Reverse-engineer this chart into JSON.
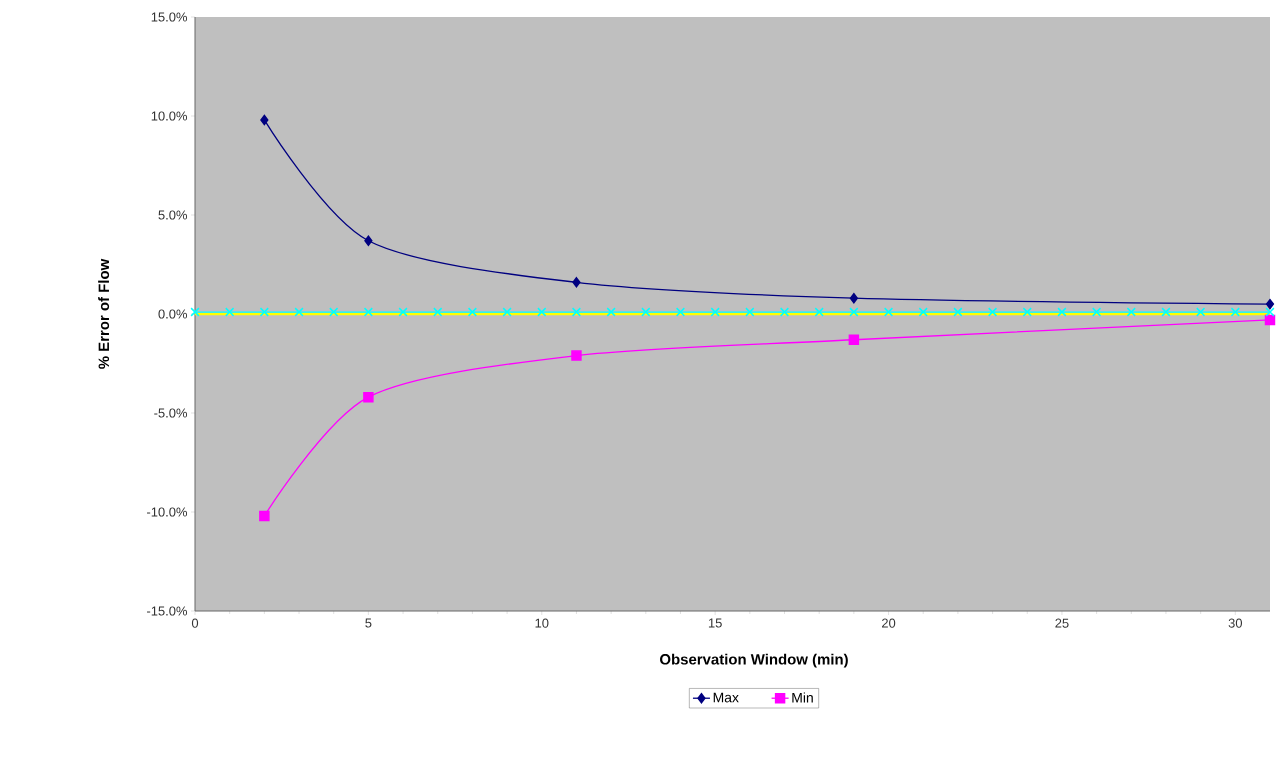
{
  "chart_data": {
    "type": "line",
    "xlabel": "Observation Window (min)",
    "ylabel": "% Error of Flow",
    "xlim": [
      0,
      31
    ],
    "xticks": [
      0,
      5,
      10,
      15,
      20,
      25,
      30
    ],
    "ylim": [
      -15,
      15
    ],
    "yticks": [
      {
        "value": -15,
        "label": "-15.0%"
      },
      {
        "value": -10,
        "label": "-10.0%"
      },
      {
        "value": -5,
        "label": "-5.0%"
      },
      {
        "value": 0,
        "label": "0.0%"
      },
      {
        "value": 5,
        "label": "5.0%"
      },
      {
        "value": 10,
        "label": "10.0%"
      },
      {
        "value": 15,
        "label": "15.0%"
      }
    ],
    "legend": "bottom",
    "grid": false,
    "series": [
      {
        "name": "Max",
        "color": "#000080",
        "marker": "diamond",
        "x": [
          2,
          5,
          11,
          19,
          31
        ],
        "values": [
          9.8,
          3.7,
          1.6,
          0.8,
          0.5
        ]
      },
      {
        "name": "Min",
        "color": "#ff00ff",
        "marker": "square",
        "x": [
          2,
          5,
          11,
          19,
          31
        ],
        "values": [
          -10.2,
          -4.2,
          -2.1,
          -1.3,
          -0.3
        ]
      },
      {
        "color": "#ffff00",
        "marker": "none",
        "x": [
          0,
          31
        ],
        "values": [
          0,
          0
        ]
      },
      {
        "color": "#00ffff",
        "marker": "cross",
        "x": [
          0,
          1,
          2,
          3,
          4,
          5,
          6,
          7,
          8,
          9,
          10,
          11,
          12,
          13,
          14,
          15,
          16,
          17,
          18,
          19,
          20,
          21,
          22,
          23,
          24,
          25,
          26,
          27,
          28,
          29,
          30,
          31
        ],
        "values": [
          0.1,
          0.1,
          0.1,
          0.1,
          0.1,
          0.1,
          0.1,
          0.1,
          0.1,
          0.1,
          0.1,
          0.1,
          0.1,
          0.1,
          0.1,
          0.1,
          0.1,
          0.1,
          0.1,
          0.1,
          0.1,
          0.1,
          0.1,
          0.1,
          0.1,
          0.1,
          0.1,
          0.1,
          0.1,
          0.1,
          0.1,
          0.1
        ]
      }
    ]
  }
}
